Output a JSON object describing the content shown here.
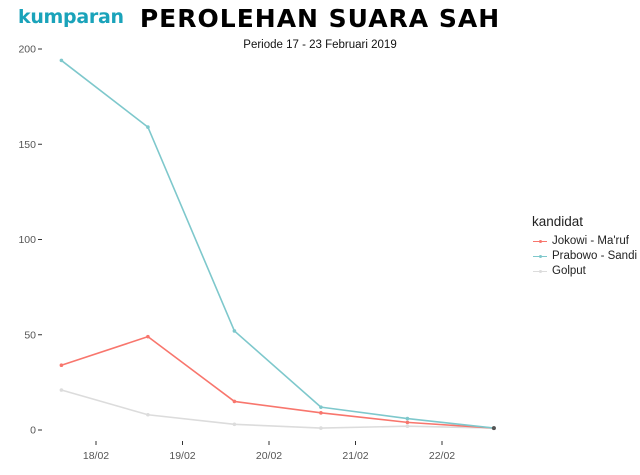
{
  "header": {
    "logo_text": "kumparan",
    "title": "PEROLEHAN SUARA SAH",
    "subtitle": "Periode 17 - 23 Februari 2019"
  },
  "colors": {
    "logo": "#1aa3ba",
    "Jokowi - Ma'ruf": "#f8766d",
    "Prabowo - Sandi": "#7ec8cc",
    "Golput": "#dcdcdc"
  },
  "chart_data": {
    "type": "line",
    "title": "PEROLEHAN SUARA SAH",
    "subtitle": "Periode 17 - 23 Februari 2019",
    "xlabel": "",
    "ylabel": "",
    "x_ticks": [
      "18/02",
      "19/02",
      "20/02",
      "21/02",
      "22/02"
    ],
    "x_range": [
      -0.4,
      4.95
    ],
    "x": [
      -0.4,
      0.6,
      1.6,
      2.6,
      3.6,
      4.6
    ],
    "ylim": [
      0,
      200
    ],
    "y_ticks": [
      0,
      50,
      100,
      150,
      200
    ],
    "grid": false,
    "legend": {
      "title": "kandidat",
      "placement": "right"
    },
    "series": [
      {
        "name": "Jokowi - Ma'ruf",
        "values": [
          34,
          49,
          15,
          9,
          4,
          1
        ]
      },
      {
        "name": "Prabowo - Sandi",
        "values": [
          194,
          159,
          52,
          12,
          6,
          1
        ]
      },
      {
        "name": "Golput",
        "values": [
          21,
          8,
          3,
          1,
          2,
          1
        ]
      }
    ]
  }
}
